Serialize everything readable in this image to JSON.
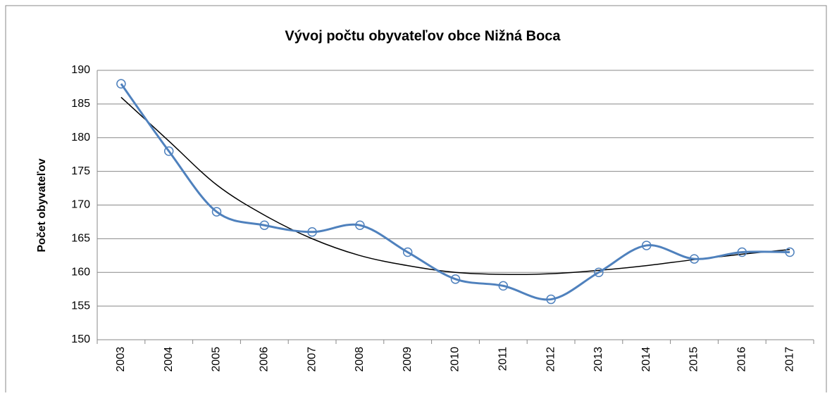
{
  "chart_data": {
    "type": "line",
    "title": "Vývoj počtu obyvateľov obce Nižná Boca",
    "y_label": "Počet obyvateľov",
    "categories": [
      "2003",
      "2004",
      "2005",
      "2006",
      "2007",
      "2008",
      "2009",
      "2010",
      "2011",
      "2012",
      "2013",
      "2014",
      "2015",
      "2016",
      "2017"
    ],
    "series": [
      {
        "color": "#4f81bd",
        "values": [
          188,
          178,
          169,
          167,
          166,
          167,
          163,
          159,
          158,
          156,
          160,
          164,
          162,
          163,
          163
        ]
      },
      {
        "color": "#000000",
        "values": [
          186,
          179.5,
          173,
          168.5,
          165,
          162.5,
          161,
          160,
          159.7,
          159.8,
          160.3,
          161,
          161.9,
          162.7,
          163.4
        ]
      }
    ],
    "ylim": [
      150,
      190
    ],
    "yticks": [
      150,
      155,
      160,
      165,
      170,
      175,
      180,
      185,
      190
    ],
    "grid": true
  }
}
